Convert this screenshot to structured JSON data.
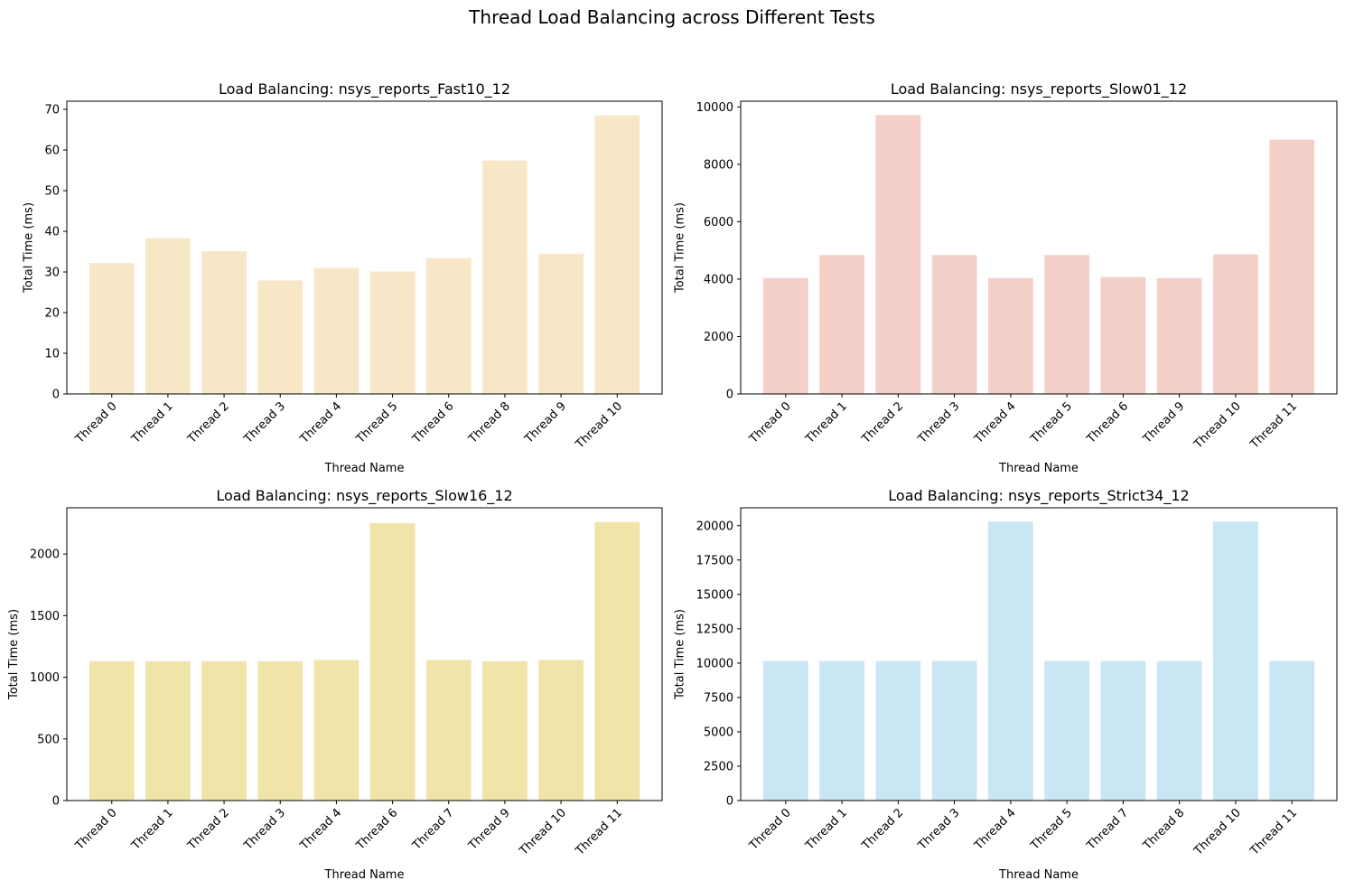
{
  "figure": {
    "title": "Thread Load Balancing across Different Tests"
  },
  "chart_data": [
    {
      "type": "bar",
      "title": "Load Balancing: nsys_reports_Fast10_12",
      "xlabel": "Thread Name",
      "ylabel": "Total Time (ms)",
      "categories": [
        "Thread 0",
        "Thread 1",
        "Thread 2",
        "Thread 3",
        "Thread 4",
        "Thread 5",
        "Thread 6",
        "Thread 8",
        "Thread 9",
        "Thread 10"
      ],
      "values": [
        32.2,
        38.3,
        35.1,
        27.9,
        31.0,
        30.1,
        33.4,
        57.4,
        34.5,
        68.5
      ],
      "ylim": [
        0,
        72
      ],
      "yticks": [
        0,
        10,
        20,
        30,
        40,
        50,
        60,
        70
      ],
      "color": "#f7e7c6",
      "grid": false
    },
    {
      "type": "bar",
      "title": "Load Balancing: nsys_reports_Slow01_12",
      "xlabel": "Thread Name",
      "ylabel": "Total Time (ms)",
      "categories": [
        "Thread 0",
        "Thread 1",
        "Thread 2",
        "Thread 3",
        "Thread 4",
        "Thread 5",
        "Thread 6",
        "Thread 9",
        "Thread 10",
        "Thread 11"
      ],
      "values": [
        4040,
        4840,
        9720,
        4840,
        4040,
        4840,
        4070,
        4040,
        4860,
        8860
      ],
      "ylim": [
        0,
        10200
      ],
      "yticks": [
        0,
        2000,
        4000,
        6000,
        8000,
        10000
      ],
      "color": "#f4d0c8",
      "grid": false
    },
    {
      "type": "bar",
      "title": "Load Balancing: nsys_reports_Slow16_12",
      "xlabel": "Thread Name",
      "ylabel": "Total Time (ms)",
      "categories": [
        "Thread 0",
        "Thread 1",
        "Thread 2",
        "Thread 3",
        "Thread 4",
        "Thread 6",
        "Thread 7",
        "Thread 9",
        "Thread 10",
        "Thread 11"
      ],
      "values": [
        1130,
        1130,
        1130,
        1130,
        1140,
        2250,
        1140,
        1130,
        1140,
        2260
      ],
      "ylim": [
        0,
        2375
      ],
      "yticks": [
        0,
        500,
        1000,
        1500,
        2000
      ],
      "color": "#f0e4a8",
      "grid": false
    },
    {
      "type": "bar",
      "title": "Load Balancing: nsys_reports_Strict34_12",
      "xlabel": "Thread Name",
      "ylabel": "Total Time (ms)",
      "categories": [
        "Thread 0",
        "Thread 1",
        "Thread 2",
        "Thread 3",
        "Thread 4",
        "Thread 5",
        "Thread 7",
        "Thread 8",
        "Thread 10",
        "Thread 11"
      ],
      "values": [
        10150,
        10150,
        10150,
        10150,
        20300,
        10150,
        10150,
        10150,
        20300,
        10150
      ],
      "ylim": [
        0,
        21300
      ],
      "yticks": [
        0,
        2500,
        5000,
        7500,
        10000,
        12500,
        15000,
        17500,
        20000
      ],
      "color": "#c8e6f4",
      "grid": false
    }
  ]
}
